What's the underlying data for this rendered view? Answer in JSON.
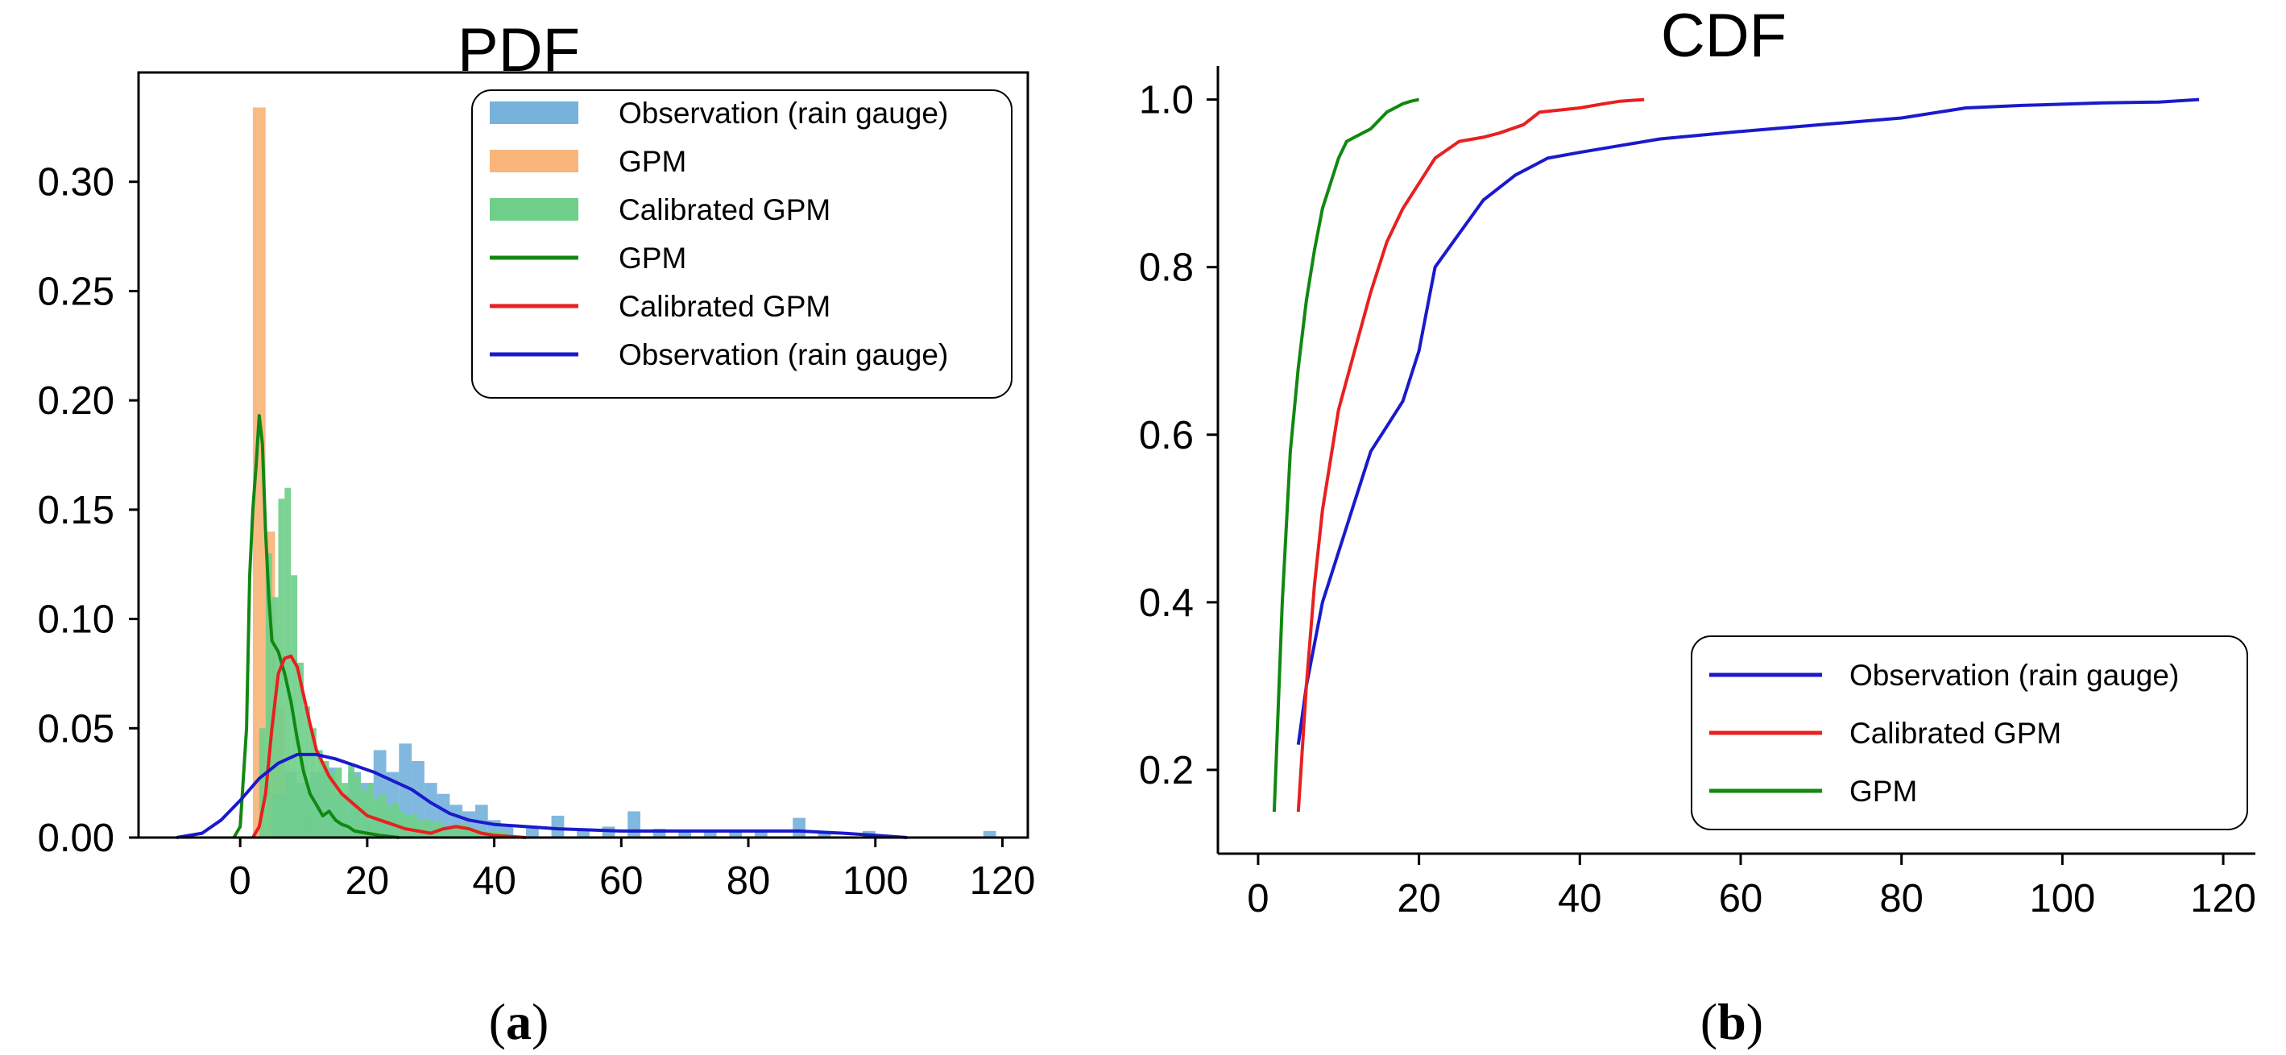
{
  "chart_data": [
    {
      "panel": "a",
      "caption": {
        "open": "(",
        "letter": "a",
        "close": ")"
      },
      "type": "bar",
      "title": "PDF",
      "xlabel": "",
      "ylabel": "",
      "xlim": [
        -16,
        124
      ],
      "ylim": [
        0,
        0.35
      ],
      "xticks": [
        0,
        20,
        40,
        60,
        80,
        100,
        120
      ],
      "yticks": [
        0.0,
        0.05,
        0.1,
        0.15,
        0.2,
        0.25,
        0.3
      ],
      "ytick_labels": [
        "0.00",
        "0.05",
        "0.10",
        "0.15",
        "0.20",
        "0.25",
        "0.30"
      ],
      "legend_position": "top-right",
      "histograms": [
        {
          "name": "GPM",
          "color": "#f9b57a",
          "bins": [
            [
              2,
              4,
              0.334
            ],
            [
              4,
              5.5,
              0.14
            ],
            [
              5.5,
              7,
              0.06
            ],
            [
              7,
              8.5,
              0.03
            ],
            [
              8.5,
              10,
              0.018
            ],
            [
              10,
              12,
              0.01
            ],
            [
              12,
              14,
              0.006
            ],
            [
              14,
              17,
              0.004
            ]
          ]
        },
        {
          "name": "Observation (rain gauge)",
          "color": "#76b2dc",
          "bins": [
            [
              5,
              7,
              0.02
            ],
            [
              7,
              9,
              0.03
            ],
            [
              9,
              11,
              0.025
            ],
            [
              11,
              13,
              0.03
            ],
            [
              13,
              15,
              0.032
            ],
            [
              15,
              17,
              0.02
            ],
            [
              17,
              19,
              0.03
            ],
            [
              19,
              21,
              0.025
            ],
            [
              21,
              23,
              0.04
            ],
            [
              23,
              25,
              0.03
            ],
            [
              25,
              27,
              0.043
            ],
            [
              27,
              29,
              0.035
            ],
            [
              29,
              31,
              0.025
            ],
            [
              31,
              33,
              0.02
            ],
            [
              33,
              35,
              0.015
            ],
            [
              35,
              37,
              0.012
            ],
            [
              37,
              39,
              0.015
            ],
            [
              39,
              41,
              0.008
            ],
            [
              41,
              43,
              0.006
            ],
            [
              45,
              47,
              0.005
            ],
            [
              49,
              51,
              0.01
            ],
            [
              53,
              55,
              0.004
            ],
            [
              57,
              59,
              0.005
            ],
            [
              61,
              63,
              0.012
            ],
            [
              65,
              67,
              0.004
            ],
            [
              69,
              71,
              0.003
            ],
            [
              73,
              75,
              0.003
            ],
            [
              77,
              79,
              0.003
            ],
            [
              81,
              83,
              0.003
            ],
            [
              87,
              89,
              0.009
            ],
            [
              91,
              93,
              0.003
            ],
            [
              98,
              100,
              0.003
            ],
            [
              117,
              119,
              0.003
            ]
          ]
        },
        {
          "name": "Calibrated GPM",
          "color": "#6fcf8a",
          "bins": [
            [
              3,
              4,
              0.05
            ],
            [
              4,
              5,
              0.13
            ],
            [
              5,
              6,
              0.11
            ],
            [
              6,
              7,
              0.155
            ],
            [
              7,
              8,
              0.16
            ],
            [
              8,
              9,
              0.12
            ],
            [
              9,
              10,
              0.08
            ],
            [
              10,
              11,
              0.06
            ],
            [
              11,
              12,
              0.05
            ],
            [
              12,
              13,
              0.04
            ],
            [
              13,
              14,
              0.035
            ],
            [
              14,
              15,
              0.03
            ],
            [
              15,
              16,
              0.032
            ],
            [
              16,
              17,
              0.025
            ],
            [
              17,
              18,
              0.033
            ],
            [
              18,
              19,
              0.028
            ],
            [
              19,
              20,
              0.022
            ],
            [
              20,
              21,
              0.025
            ],
            [
              21,
              22,
              0.018
            ],
            [
              22,
              23,
              0.02
            ],
            [
              23,
              24,
              0.015
            ],
            [
              24,
              25,
              0.016
            ],
            [
              25,
              26,
              0.012
            ],
            [
              26,
              27,
              0.01
            ],
            [
              27,
              28,
              0.011
            ],
            [
              28,
              30,
              0.008
            ],
            [
              30,
              32,
              0.007
            ],
            [
              32,
              34,
              0.005
            ],
            [
              34,
              36,
              0.006
            ],
            [
              36,
              38,
              0.004
            ],
            [
              38,
              40,
              0.003
            ],
            [
              40,
              42,
              0.003
            ]
          ]
        }
      ],
      "kde_lines": [
        {
          "name": "GPM",
          "color": "#118811",
          "points": [
            [
              -1,
              0.0
            ],
            [
              0,
              0.005
            ],
            [
              1,
              0.05
            ],
            [
              1.5,
              0.12
            ],
            [
              2,
              0.15
            ],
            [
              2.5,
              0.17
            ],
            [
              3,
              0.193
            ],
            [
              3.5,
              0.18
            ],
            [
              4,
              0.14
            ],
            [
              4.5,
              0.11
            ],
            [
              5,
              0.09
            ],
            [
              6,
              0.085
            ],
            [
              7,
              0.075
            ],
            [
              8,
              0.062
            ],
            [
              9,
              0.045
            ],
            [
              10,
              0.03
            ],
            [
              11,
              0.02
            ],
            [
              12,
              0.015
            ],
            [
              13,
              0.01
            ],
            [
              14,
              0.012
            ],
            [
              15,
              0.008
            ],
            [
              16,
              0.006
            ],
            [
              17,
              0.005
            ],
            [
              18,
              0.003
            ],
            [
              20,
              0.002
            ],
            [
              22,
              0.001
            ],
            [
              25,
              0.0
            ]
          ]
        },
        {
          "name": "Calibrated GPM",
          "color": "#e82020",
          "points": [
            [
              2,
              0.0
            ],
            [
              3,
              0.005
            ],
            [
              4,
              0.02
            ],
            [
              5,
              0.05
            ],
            [
              6,
              0.075
            ],
            [
              7,
              0.082
            ],
            [
              8,
              0.083
            ],
            [
              9,
              0.078
            ],
            [
              10,
              0.065
            ],
            [
              11,
              0.052
            ],
            [
              12,
              0.04
            ],
            [
              14,
              0.028
            ],
            [
              16,
              0.02
            ],
            [
              18,
              0.015
            ],
            [
              20,
              0.01
            ],
            [
              22,
              0.008
            ],
            [
              24,
              0.006
            ],
            [
              26,
              0.004
            ],
            [
              28,
              0.003
            ],
            [
              30,
              0.002
            ],
            [
              32,
              0.004
            ],
            [
              34,
              0.005
            ],
            [
              36,
              0.004
            ],
            [
              38,
              0.002
            ],
            [
              40,
              0.001
            ],
            [
              45,
              0.0
            ]
          ]
        },
        {
          "name": "Observation (rain gauge)",
          "color": "#1a1acc",
          "points": [
            [
              -10,
              0.0
            ],
            [
              -6,
              0.002
            ],
            [
              -3,
              0.008
            ],
            [
              0,
              0.017
            ],
            [
              3,
              0.027
            ],
            [
              6,
              0.034
            ],
            [
              9,
              0.038
            ],
            [
              12,
              0.038
            ],
            [
              15,
              0.036
            ],
            [
              18,
              0.033
            ],
            [
              21,
              0.03
            ],
            [
              24,
              0.026
            ],
            [
              27,
              0.022
            ],
            [
              30,
              0.016
            ],
            [
              33,
              0.011
            ],
            [
              36,
              0.008
            ],
            [
              40,
              0.006
            ],
            [
              45,
              0.005
            ],
            [
              50,
              0.004
            ],
            [
              60,
              0.003
            ],
            [
              70,
              0.003
            ],
            [
              80,
              0.003
            ],
            [
              88,
              0.003
            ],
            [
              95,
              0.002
            ],
            [
              100,
              0.001
            ],
            [
              105,
              0.0
            ]
          ]
        }
      ],
      "legend": [
        {
          "label": "Observation (rain gauge)",
          "kind": "patch",
          "color": "#76b2dc"
        },
        {
          "label": "GPM",
          "kind": "patch",
          "color": "#f9b57a"
        },
        {
          "label": "Calibrated GPM",
          "kind": "patch",
          "color": "#6fcf8a"
        },
        {
          "label": "GPM",
          "kind": "line",
          "color": "#118811"
        },
        {
          "label": "Calibrated GPM",
          "kind": "line",
          "color": "#e82020"
        },
        {
          "label": "Observation (rain gauge)",
          "kind": "line",
          "color": "#1a1acc"
        }
      ]
    },
    {
      "panel": "b",
      "caption": {
        "open": "(",
        "letter": "b",
        "close": ")"
      },
      "type": "line",
      "title": "CDF",
      "xlabel": "",
      "ylabel": "",
      "xlim": [
        -5,
        124
      ],
      "ylim": [
        0.1,
        1.04
      ],
      "xticks": [
        0,
        20,
        40,
        60,
        80,
        100,
        120
      ],
      "yticks": [
        0.2,
        0.4,
        0.6,
        0.8,
        1.0
      ],
      "ytick_labels": [
        "0.2",
        "0.4",
        "0.6",
        "0.8",
        "1.0"
      ],
      "legend_position": "bottom-right",
      "series": [
        {
          "name": "Observation (rain gauge)",
          "color": "#1a1acc",
          "points": [
            [
              5,
              0.23
            ],
            [
              6,
              0.3
            ],
            [
              8,
              0.4
            ],
            [
              10,
              0.46
            ],
            [
              12,
              0.52
            ],
            [
              14,
              0.58
            ],
            [
              16,
              0.61
            ],
            [
              18,
              0.64
            ],
            [
              20,
              0.7
            ],
            [
              22,
              0.8
            ],
            [
              25,
              0.84
            ],
            [
              28,
              0.88
            ],
            [
              32,
              0.91
            ],
            [
              36,
              0.93
            ],
            [
              40,
              0.937
            ],
            [
              45,
              0.945
            ],
            [
              50,
              0.953
            ],
            [
              60,
              0.962
            ],
            [
              70,
              0.97
            ],
            [
              80,
              0.978
            ],
            [
              88,
              0.99
            ],
            [
              95,
              0.993
            ],
            [
              105,
              0.996
            ],
            [
              112,
              0.997
            ],
            [
              117,
              1.0
            ]
          ]
        },
        {
          "name": "Calibrated GPM",
          "color": "#e82020",
          "points": [
            [
              5,
              0.15
            ],
            [
              6,
              0.3
            ],
            [
              7,
              0.42
            ],
            [
              8,
              0.51
            ],
            [
              9,
              0.57
            ],
            [
              10,
              0.63
            ],
            [
              12,
              0.7
            ],
            [
              14,
              0.77
            ],
            [
              16,
              0.83
            ],
            [
              18,
              0.87
            ],
            [
              20,
              0.9
            ],
            [
              22,
              0.93
            ],
            [
              25,
              0.95
            ],
            [
              28,
              0.955
            ],
            [
              30,
              0.96
            ],
            [
              33,
              0.97
            ],
            [
              35,
              0.985
            ],
            [
              38,
              0.988
            ],
            [
              40,
              0.99
            ],
            [
              43,
              0.995
            ],
            [
              45,
              0.998
            ],
            [
              48,
              1.0
            ]
          ]
        },
        {
          "name": "GPM",
          "color": "#118811",
          "points": [
            [
              2,
              0.15
            ],
            [
              3,
              0.4
            ],
            [
              4,
              0.58
            ],
            [
              5,
              0.68
            ],
            [
              6,
              0.76
            ],
            [
              7,
              0.82
            ],
            [
              8,
              0.87
            ],
            [
              9,
              0.9
            ],
            [
              10,
              0.93
            ],
            [
              11,
              0.95
            ],
            [
              12,
              0.955
            ],
            [
              13,
              0.96
            ],
            [
              14,
              0.965
            ],
            [
              15,
              0.975
            ],
            [
              16,
              0.985
            ],
            [
              17,
              0.99
            ],
            [
              18,
              0.995
            ],
            [
              19,
              0.998
            ],
            [
              20,
              1.0
            ]
          ]
        }
      ],
      "legend": [
        {
          "label": "Observation (rain gauge)",
          "kind": "line",
          "color": "#1a1acc"
        },
        {
          "label": "Calibrated GPM",
          "kind": "line",
          "color": "#e82020"
        },
        {
          "label": "GPM",
          "kind": "line",
          "color": "#118811"
        }
      ]
    }
  ]
}
